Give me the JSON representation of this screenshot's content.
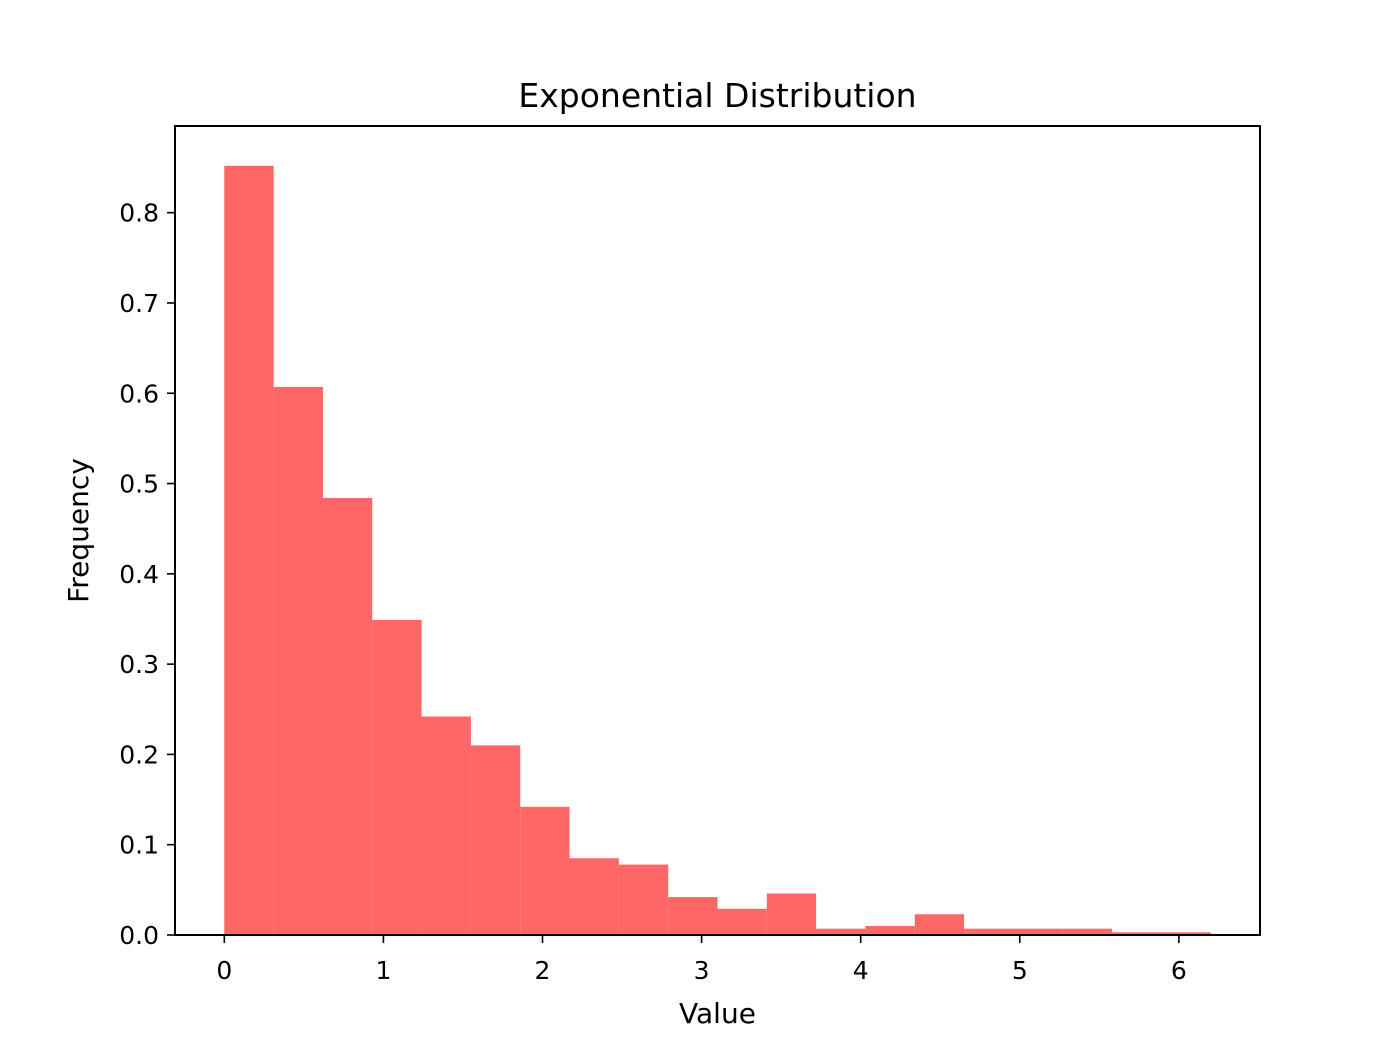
{
  "chart_data": {
    "type": "bar",
    "title": "Exponential Distribution",
    "xlabel": "Value",
    "ylabel": "Frequency",
    "xlim": [
      -0.31,
      6.51
    ],
    "ylim": [
      0.0,
      0.896
    ],
    "xticks": [
      0,
      1,
      2,
      3,
      4,
      5,
      6
    ],
    "yticks": [
      0.0,
      0.1,
      0.2,
      0.3,
      0.4,
      0.5,
      0.6,
      0.7,
      0.8
    ],
    "ytick_labels": [
      "0.0",
      "0.1",
      "0.2",
      "0.3",
      "0.4",
      "0.5",
      "0.6",
      "0.7",
      "0.8"
    ],
    "grid": false,
    "bin_edges": [
      0.0,
      0.31,
      0.62,
      0.93,
      1.24,
      1.55,
      1.86,
      2.17,
      2.48,
      2.79,
      3.1,
      3.41,
      3.72,
      4.03,
      4.34,
      4.65,
      4.96,
      5.27,
      5.58,
      5.89,
      6.2
    ],
    "values": [
      0.852,
      0.607,
      0.484,
      0.349,
      0.242,
      0.21,
      0.142,
      0.085,
      0.078,
      0.042,
      0.029,
      0.046,
      0.007,
      0.01,
      0.023,
      0.007,
      0.007,
      0.007,
      0.003,
      0.003
    ],
    "color": "#ff6666"
  }
}
